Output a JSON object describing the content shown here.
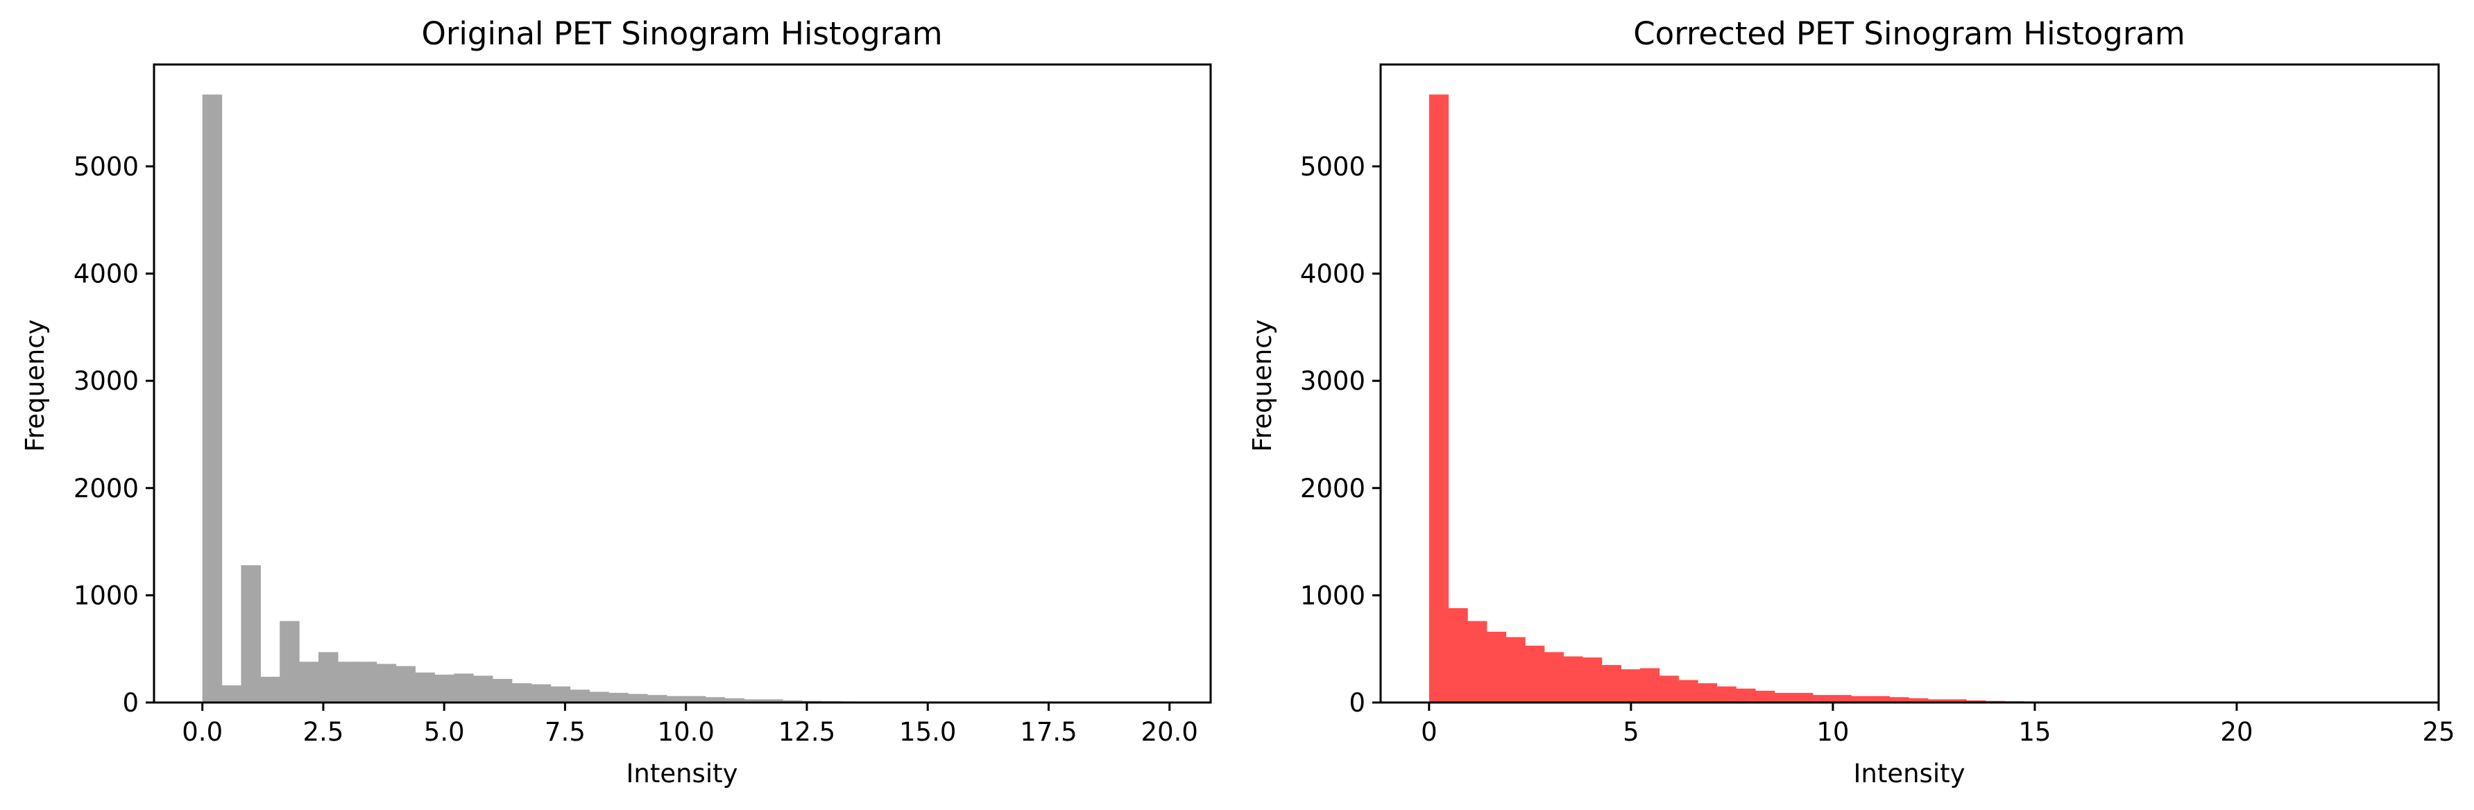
{
  "chart_data": [
    {
      "type": "bar",
      "title": "Original PET Sinogram Histogram",
      "xlabel": "Intensity",
      "ylabel": "Frequency",
      "xlim": [
        -1.0,
        20.85
      ],
      "ylim": [
        0,
        5950
      ],
      "xticks": [
        0,
        2.5,
        5,
        7.5,
        10,
        12.5,
        15,
        17.5,
        20
      ],
      "xtick_labels": [
        "0.0",
        "2.5",
        "5.0",
        "7.5",
        "10.0",
        "12.5",
        "15.0",
        "17.5",
        "20.0"
      ],
      "yticks": [
        0,
        1000,
        2000,
        3000,
        4000,
        5000
      ],
      "ytick_labels": [
        "0",
        "1000",
        "2000",
        "3000",
        "4000",
        "5000"
      ],
      "color": "#a6a6a6",
      "bin_start": 0,
      "bin_width": 0.4,
      "values": [
        5670,
        160,
        1280,
        240,
        760,
        380,
        470,
        380,
        380,
        360,
        340,
        280,
        260,
        270,
        250,
        220,
        180,
        170,
        150,
        120,
        100,
        90,
        80,
        70,
        60,
        60,
        50,
        40,
        30,
        30,
        20,
        15,
        12,
        10,
        8,
        6,
        5,
        4,
        3,
        2,
        2,
        2,
        1,
        1,
        1,
        1,
        1,
        1,
        1,
        1
      ]
    },
    {
      "type": "bar",
      "title": "Corrected PET Sinogram Histogram",
      "xlabel": "Intensity",
      "ylabel": "Frequency",
      "xlim": [
        -1.2,
        25.0
      ],
      "ylim": [
        0,
        5950
      ],
      "xticks": [
        0,
        5,
        10,
        15,
        20,
        25
      ],
      "xtick_labels": [
        "0",
        "5",
        "10",
        "15",
        "20",
        "25"
      ],
      "yticks": [
        0,
        1000,
        2000,
        3000,
        4000,
        5000
      ],
      "ytick_labels": [
        "0",
        "1000",
        "2000",
        "3000",
        "4000",
        "5000"
      ],
      "color": "#ff4d4d",
      "bin_start": 0,
      "bin_width": 0.475,
      "values": [
        5670,
        880,
        760,
        660,
        610,
        530,
        470,
        430,
        420,
        350,
        310,
        320,
        250,
        210,
        180,
        150,
        130,
        110,
        90,
        90,
        70,
        70,
        60,
        60,
        50,
        40,
        30,
        30,
        20,
        15,
        12,
        10,
        8,
        6,
        5,
        4,
        3,
        2,
        2,
        2,
        1,
        1,
        1,
        1,
        1,
        1,
        1,
        1,
        1,
        1
      ]
    }
  ]
}
